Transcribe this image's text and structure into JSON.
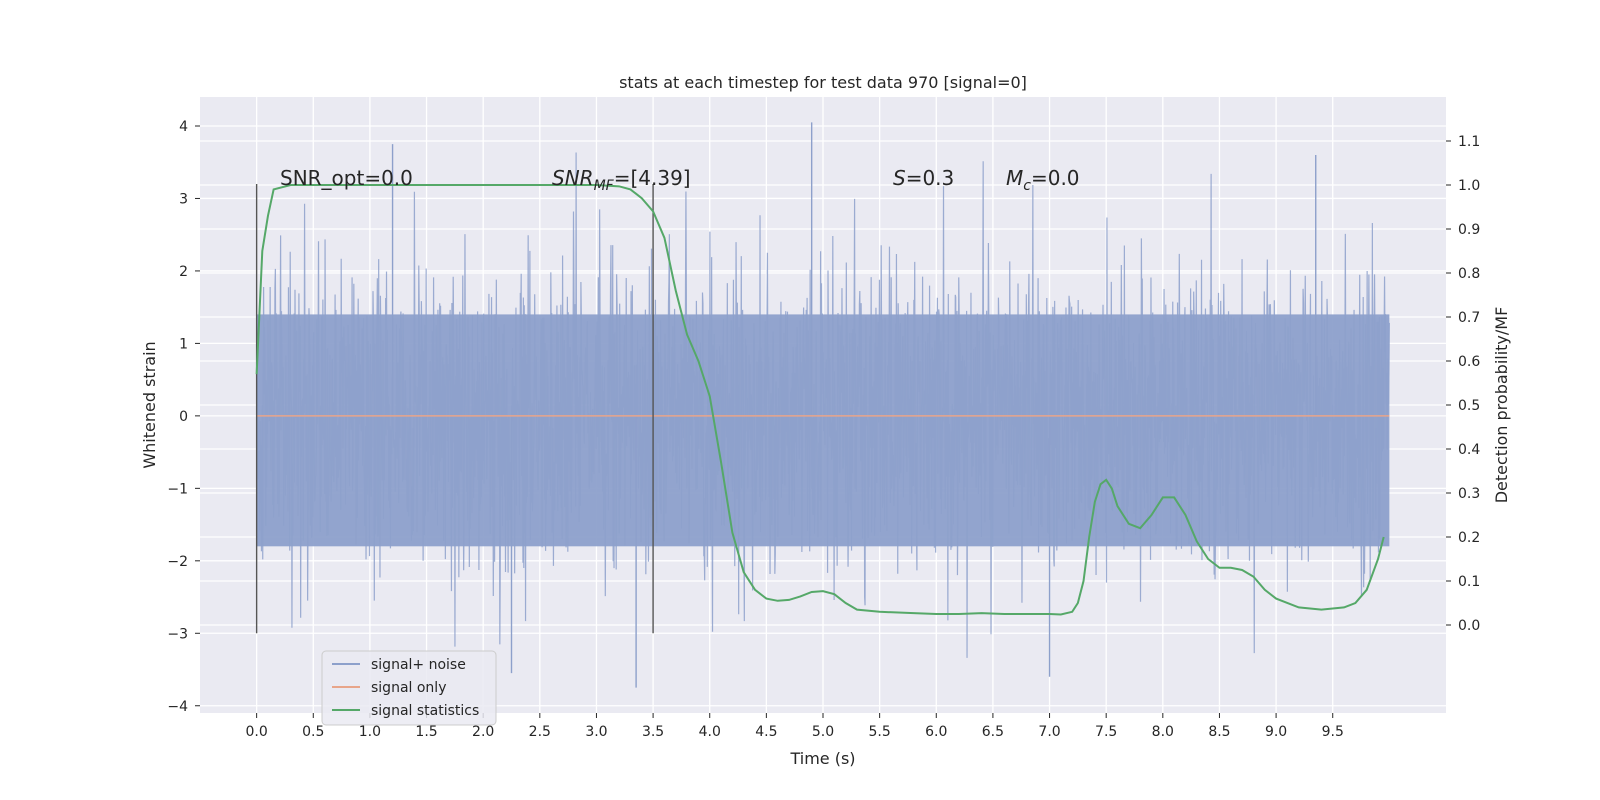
{
  "chart_data": {
    "type": "line",
    "title": "stats at each timestep for test data 970 [signal=0]",
    "xlabel": "Time (s)",
    "ylabel_left": "Whitened strain",
    "ylabel_right": "Detection probability/MF",
    "xlim": [
      -0.5,
      10.5
    ],
    "ylim_left": [
      -4.1,
      4.4
    ],
    "ylim_right": [
      -0.2,
      1.2
    ],
    "x_ticks": [
      0.0,
      0.5,
      1.0,
      1.5,
      2.0,
      2.5,
      3.0,
      3.5,
      4.0,
      4.5,
      5.0,
      5.5,
      6.0,
      6.5,
      7.0,
      7.5,
      8.0,
      8.5,
      9.0,
      9.5
    ],
    "x_tick_labels": [
      "0.0",
      "0.5",
      "1.0",
      "1.5",
      "2.0",
      "2.5",
      "3.0",
      "3.5",
      "4.0",
      "4.5",
      "5.0",
      "5.5",
      "6.0",
      "6.5",
      "7.0",
      "7.5",
      "8.0",
      "8.5",
      "9.0",
      "9.5"
    ],
    "y_left_ticks": [
      4,
      3,
      2,
      1,
      0,
      -1,
      -2,
      -3,
      -4
    ],
    "y_left_tick_labels": [
      "4",
      "3",
      "2",
      "1",
      "0",
      "−1",
      "−2",
      "−3",
      "−4"
    ],
    "y_right_ticks": [
      1.1,
      1.0,
      0.9,
      0.8,
      0.7,
      0.6,
      0.5,
      0.4,
      0.3,
      0.2,
      0.1,
      0.0
    ],
    "y_right_tick_labels": [
      "1.1",
      "1.0",
      "0.9",
      "0.8",
      "0.7",
      "0.6",
      "0.5",
      "0.4",
      "0.3",
      "0.2",
      "0.1",
      "0.0"
    ],
    "grid": true,
    "legend_position": "lower-left",
    "annotations": {
      "snr_opt": "SNR_opt=0.0",
      "snr_mf_base": "SNR",
      "snr_mf_sub": "MF",
      "snr_mf_value": "=[4.39]",
      "s_symbol": "S",
      "s_value": "=0.3",
      "mc_symbol": "M",
      "mc_sub": "c",
      "mc_value": "=0.0"
    },
    "vertical_markers": [
      0.0,
      3.5
    ],
    "series": [
      {
        "name": "signal+ noise",
        "axis": "left",
        "color": "#8da0cb",
        "x_range": [
          0.0,
          10.0
        ],
        "core_envelope": [
          -1.8,
          1.4
        ],
        "peak_max": 4.05,
        "peak_min": -3.75
      },
      {
        "name": "signal only",
        "axis": "left",
        "color": "#e8a58a",
        "x": [
          0.0,
          10.0
        ],
        "y": [
          0.0,
          0.0
        ]
      },
      {
        "name": "signal statistics",
        "axis": "right",
        "color": "#55a868",
        "x": [
          0.0,
          0.05,
          0.1,
          0.15,
          0.3,
          0.5,
          1.0,
          1.5,
          2.0,
          2.5,
          3.0,
          3.2,
          3.3,
          3.4,
          3.5,
          3.6,
          3.7,
          3.8,
          3.9,
          4.0,
          4.1,
          4.2,
          4.3,
          4.4,
          4.5,
          4.6,
          4.7,
          4.8,
          4.9,
          5.0,
          5.1,
          5.2,
          5.3,
          5.5,
          5.8,
          6.0,
          6.2,
          6.4,
          6.6,
          6.8,
          7.0,
          7.1,
          7.2,
          7.25,
          7.3,
          7.35,
          7.4,
          7.45,
          7.5,
          7.55,
          7.6,
          7.7,
          7.8,
          7.9,
          8.0,
          8.1,
          8.2,
          8.3,
          8.4,
          8.5,
          8.6,
          8.7,
          8.8,
          8.9,
          9.0,
          9.2,
          9.4,
          9.6,
          9.7,
          9.8,
          9.9,
          9.95
        ],
        "y": [
          0.57,
          0.85,
          0.93,
          0.99,
          1.0,
          1.0,
          1.0,
          1.0,
          1.0,
          1.0,
          1.0,
          0.997,
          0.99,
          0.97,
          0.94,
          0.88,
          0.76,
          0.66,
          0.6,
          0.52,
          0.37,
          0.21,
          0.12,
          0.08,
          0.06,
          0.055,
          0.057,
          0.065,
          0.075,
          0.077,
          0.07,
          0.05,
          0.035,
          0.03,
          0.027,
          0.025,
          0.025,
          0.027,
          0.025,
          0.025,
          0.025,
          0.024,
          0.03,
          0.05,
          0.1,
          0.2,
          0.28,
          0.32,
          0.33,
          0.31,
          0.27,
          0.23,
          0.22,
          0.25,
          0.29,
          0.29,
          0.25,
          0.19,
          0.15,
          0.13,
          0.13,
          0.125,
          0.11,
          0.08,
          0.06,
          0.04,
          0.035,
          0.04,
          0.05,
          0.08,
          0.15,
          0.2
        ]
      }
    ]
  }
}
